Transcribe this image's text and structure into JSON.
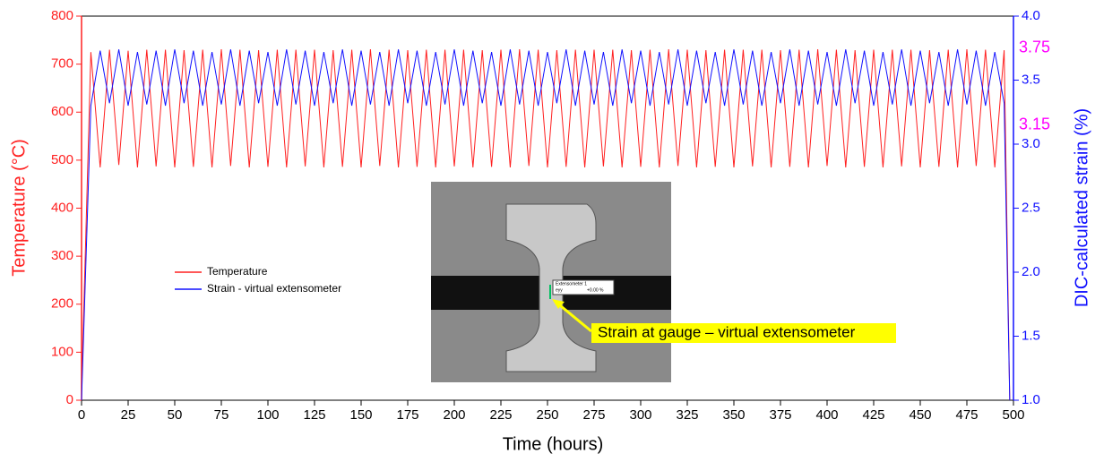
{
  "chart_data": {
    "type": "line",
    "x_label": "Time (hours)",
    "y_label": "Temperature (°C)",
    "y2_label": "DIC-calculated strain (%)",
    "x": [
      0,
      5,
      10,
      15,
      20,
      25,
      30,
      35,
      40,
      45,
      50,
      55,
      60,
      65,
      70,
      75,
      80,
      85,
      90,
      95,
      100,
      105,
      110,
      115,
      120,
      125,
      130,
      135,
      140,
      145,
      150,
      155,
      160,
      165,
      170,
      175,
      180,
      185,
      190,
      195,
      200,
      205,
      210,
      215,
      220,
      225,
      230,
      235,
      240,
      245,
      250,
      255,
      260,
      265,
      270,
      275,
      280,
      285,
      290,
      295,
      300,
      305,
      310,
      315,
      320,
      325,
      330,
      335,
      340,
      345,
      350,
      355,
      360,
      365,
      370,
      375,
      380,
      385,
      390,
      395,
      400,
      405,
      410,
      415,
      420,
      425,
      430,
      435,
      440,
      445,
      450,
      455,
      460,
      465,
      470,
      475,
      480,
      485,
      490,
      495,
      498
    ],
    "series": [
      {
        "name": "Temperature",
        "color": "#ff2020",
        "values": [
          20,
          725,
          485,
          730,
          490,
          728,
          485,
          730,
          487,
          730,
          485,
          729,
          486,
          730,
          485,
          731,
          488,
          730,
          485,
          729,
          486,
          730,
          485,
          730,
          487,
          730,
          485,
          729,
          486,
          730,
          485,
          731,
          488,
          730,
          485,
          729,
          486,
          730,
          485,
          730,
          487,
          730,
          485,
          729,
          486,
          730,
          485,
          731,
          488,
          730,
          485,
          729,
          486,
          730,
          485,
          730,
          487,
          730,
          485,
          729,
          486,
          730,
          485,
          731,
          488,
          730,
          485,
          729,
          486,
          730,
          485,
          730,
          487,
          730,
          485,
          729,
          486,
          730,
          485,
          731,
          488,
          730,
          485,
          729,
          486,
          730,
          485,
          730,
          487,
          730,
          485,
          729,
          486,
          730,
          485,
          731,
          488,
          730,
          485,
          729,
          0
        ]
      },
      {
        "name": "Strain - virtual extensometer",
        "color": "#1010ff",
        "axis": "y2",
        "values": [
          1.0,
          3.3,
          3.73,
          3.32,
          3.74,
          3.3,
          3.72,
          3.31,
          3.73,
          3.3,
          3.74,
          3.32,
          3.73,
          3.3,
          3.72,
          3.31,
          3.74,
          3.3,
          3.73,
          3.32,
          3.72,
          3.3,
          3.74,
          3.31,
          3.73,
          3.3,
          3.72,
          3.32,
          3.74,
          3.3,
          3.73,
          3.31,
          3.72,
          3.3,
          3.74,
          3.32,
          3.73,
          3.3,
          3.72,
          3.31,
          3.74,
          3.3,
          3.73,
          3.32,
          3.72,
          3.3,
          3.74,
          3.31,
          3.73,
          3.3,
          3.72,
          3.32,
          3.74,
          3.3,
          3.73,
          3.31,
          3.72,
          3.3,
          3.74,
          3.32,
          3.73,
          3.3,
          3.72,
          3.31,
          3.74,
          3.3,
          3.73,
          3.32,
          3.72,
          3.3,
          3.74,
          3.31,
          3.73,
          3.3,
          3.72,
          3.32,
          3.74,
          3.3,
          3.73,
          3.31,
          3.72,
          3.3,
          3.74,
          3.32,
          3.73,
          3.3,
          3.72,
          3.31,
          3.74,
          3.3,
          3.73,
          3.32,
          3.72,
          3.3,
          3.74,
          3.31,
          3.73,
          3.3,
          3.72,
          3.32,
          1.0
        ]
      }
    ],
    "xlim": [
      0,
      500
    ],
    "xticks": [
      0,
      25,
      50,
      75,
      100,
      125,
      150,
      175,
      200,
      225,
      250,
      275,
      300,
      325,
      350,
      375,
      400,
      425,
      450,
      475,
      500
    ],
    "ylim": [
      0,
      800
    ],
    "yticks": [
      0,
      100,
      200,
      300,
      400,
      500,
      600,
      700,
      800
    ],
    "y2lim": [
      1,
      4
    ],
    "y2ticks": [
      {
        "value": 1,
        "label": "1.0"
      },
      1.5,
      {
        "value": 2,
        "label": "2.0"
      },
      2.5,
      {
        "value": 3,
        "label": "3.0"
      },
      3.5,
      {
        "value": 4,
        "label": "4.0"
      }
    ],
    "annotations": [
      {
        "text": "3.75",
        "y2": 3.75,
        "color": "#ff00ff"
      },
      {
        "text": "3.15",
        "y2": 3.15,
        "color": "#ff00ff"
      }
    ],
    "inset": {
      "callout": "Strain at gauge – virtual extensometer",
      "labels": [
        "Extensometer 1",
        "eyy",
        "+0.00 %"
      ]
    },
    "legend": "center-left"
  }
}
